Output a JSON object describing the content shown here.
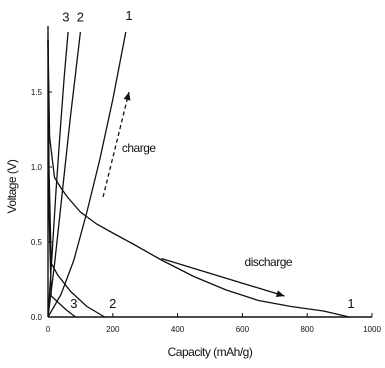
{
  "chart_data": {
    "type": "line",
    "xlabel": "Capacity (mAh/g)",
    "ylabel": "Voltage (V)",
    "xlim": [
      0,
      1000
    ],
    "ylim": [
      0,
      1.9
    ],
    "x_ticks": [
      "0",
      "200",
      "400",
      "600",
      "800",
      "1000"
    ],
    "y_ticks": [
      "0.0",
      "0.5",
      "1.0",
      "1.5"
    ],
    "x_tick_values": [
      0,
      200,
      400,
      600,
      800,
      1000
    ],
    "y_tick_values": [
      0,
      0.5,
      1.0,
      1.5
    ],
    "grid": false,
    "series": [
      {
        "name": "1",
        "kind": "discharge",
        "x": [
          0,
          5,
          20,
          40,
          60,
          100,
          150,
          200,
          260,
          350,
          450,
          550,
          650,
          750,
          850,
          930
        ],
        "y": [
          1.85,
          1.2,
          0.93,
          0.86,
          0.8,
          0.7,
          0.62,
          0.56,
          0.49,
          0.38,
          0.27,
          0.18,
          0.11,
          0.07,
          0.04,
          0.0
        ]
      },
      {
        "name": "1",
        "kind": "charge",
        "x": [
          0,
          40,
          80,
          120,
          160,
          200,
          240
        ],
        "y": [
          0.0,
          0.15,
          0.38,
          0.7,
          1.05,
          1.45,
          1.9
        ]
      },
      {
        "name": "2",
        "kind": "discharge",
        "x": [
          0,
          3,
          10,
          30,
          70,
          120,
          175
        ],
        "y": [
          1.85,
          1.0,
          0.36,
          0.28,
          0.17,
          0.07,
          0.0
        ]
      },
      {
        "name": "2",
        "kind": "charge",
        "x": [
          0,
          20,
          40,
          55,
          70,
          85,
          100
        ],
        "y": [
          0.0,
          0.35,
          0.75,
          1.05,
          1.35,
          1.62,
          1.9
        ]
      },
      {
        "name": "3",
        "kind": "discharge",
        "x": [
          0,
          3,
          10,
          30,
          55,
          85
        ],
        "y": [
          1.85,
          0.7,
          0.14,
          0.1,
          0.05,
          0.0
        ]
      },
      {
        "name": "3",
        "kind": "charge",
        "x": [
          0,
          12,
          25,
          38,
          50,
          62
        ],
        "y": [
          0.0,
          0.4,
          0.85,
          1.25,
          1.6,
          1.9
        ]
      }
    ],
    "annotations": [
      {
        "text": "charge",
        "x": 280,
        "y": 1.1
      },
      {
        "text": "discharge",
        "x": 680,
        "y": 0.34
      },
      {
        "text": "1",
        "x": 250,
        "y": 1.98
      },
      {
        "text": "2",
        "x": 100,
        "y": 1.97
      },
      {
        "text": "3",
        "x": 55,
        "y": 1.97
      },
      {
        "text": "1",
        "x": 935,
        "y": 0.06
      },
      {
        "text": "2",
        "x": 200,
        "y": 0.06
      },
      {
        "text": "3",
        "x": 80,
        "y": 0.06
      }
    ],
    "arrows": [
      {
        "name": "charge-arrow",
        "from": [
          170,
          0.8
        ],
        "to": [
          250,
          1.5
        ],
        "style": "dashed"
      },
      {
        "name": "discharge-arrow",
        "from": [
          350,
          0.39
        ],
        "to": [
          730,
          0.14
        ],
        "style": "solid"
      }
    ]
  }
}
